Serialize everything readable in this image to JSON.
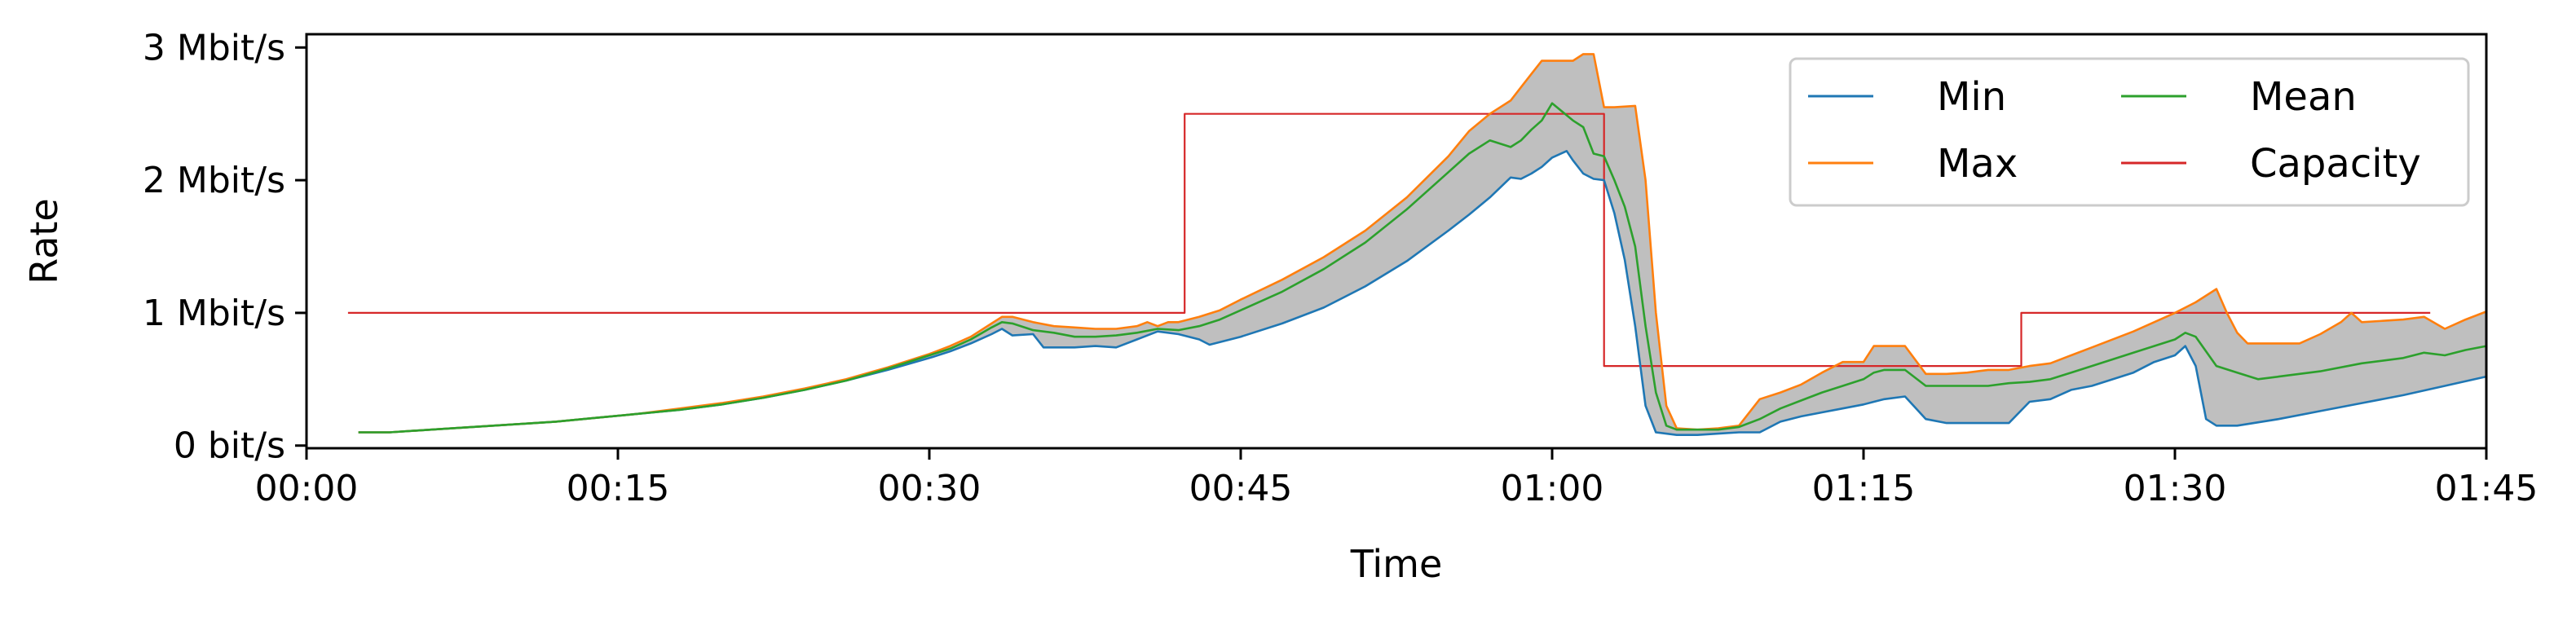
{
  "chart_data": {
    "type": "line",
    "title": "",
    "xlabel": "Time",
    "ylabel": "Rate",
    "x_unit": "minutes",
    "xlim": [
      0,
      105
    ],
    "ylim": [
      -0.02,
      3.1
    ],
    "x_ticks": [
      {
        "value": 0,
        "label": "00:00"
      },
      {
        "value": 15,
        "label": "00:15"
      },
      {
        "value": 30,
        "label": "00:30"
      },
      {
        "value": 45,
        "label": "00:45"
      },
      {
        "value": 60,
        "label": "01:00"
      },
      {
        "value": 75,
        "label": "01:15"
      },
      {
        "value": 90,
        "label": "01:30"
      },
      {
        "value": 105,
        "label": "01:45"
      }
    ],
    "y_ticks": [
      {
        "value": 0,
        "label": "0 bit/s"
      },
      {
        "value": 1,
        "label": "1 Mbit/s"
      },
      {
        "value": 2,
        "label": "2 Mbit/s"
      },
      {
        "value": 3,
        "label": "3 Mbit/s"
      }
    ],
    "y_unit": "Mbit/s",
    "grid": false,
    "legend": {
      "position": "top-right",
      "columns": 2
    },
    "band": {
      "lower": "Min",
      "upper": "Max",
      "color": "#bfbfbf"
    },
    "series": [
      {
        "name": "Min",
        "color": "#1f77b4",
        "points": [
          [
            2.5,
            0.1
          ],
          [
            4,
            0.1
          ],
          [
            6,
            0.12
          ],
          [
            8,
            0.14
          ],
          [
            10,
            0.16
          ],
          [
            12,
            0.18
          ],
          [
            14,
            0.21
          ],
          [
            16,
            0.24
          ],
          [
            18,
            0.27
          ],
          [
            20,
            0.31
          ],
          [
            22,
            0.36
          ],
          [
            24,
            0.42
          ],
          [
            26,
            0.49
          ],
          [
            28,
            0.57
          ],
          [
            30,
            0.66
          ],
          [
            31,
            0.71
          ],
          [
            32,
            0.77
          ],
          [
            33,
            0.84
          ],
          [
            33.5,
            0.88
          ],
          [
            34,
            0.83
          ],
          [
            35,
            0.84
          ],
          [
            35.5,
            0.74
          ],
          [
            37,
            0.74
          ],
          [
            38,
            0.75
          ],
          [
            39,
            0.74
          ],
          [
            40,
            0.8
          ],
          [
            41,
            0.86
          ],
          [
            42,
            0.84
          ],
          [
            43,
            0.8
          ],
          [
            43.5,
            0.76
          ],
          [
            45,
            0.82
          ],
          [
            47,
            0.92
          ],
          [
            49,
            1.04
          ],
          [
            51,
            1.2
          ],
          [
            53,
            1.39
          ],
          [
            55,
            1.62
          ],
          [
            56,
            1.74
          ],
          [
            57,
            1.87
          ],
          [
            58,
            2.02
          ],
          [
            58.5,
            2.01
          ],
          [
            59,
            2.05
          ],
          [
            59.5,
            2.1
          ],
          [
            60,
            2.17
          ],
          [
            60.7,
            2.22
          ],
          [
            61,
            2.15
          ],
          [
            61.5,
            2.05
          ],
          [
            62,
            2.01
          ],
          [
            62.5,
            2.0
          ],
          [
            63,
            1.75
          ],
          [
            63.5,
            1.4
          ],
          [
            64,
            0.9
          ],
          [
            64.5,
            0.3
          ],
          [
            65,
            0.1
          ],
          [
            66,
            0.08
          ],
          [
            67,
            0.08
          ],
          [
            68,
            0.09
          ],
          [
            69,
            0.1
          ],
          [
            70,
            0.1
          ],
          [
            71,
            0.18
          ],
          [
            72,
            0.22
          ],
          [
            73,
            0.25
          ],
          [
            74,
            0.28
          ],
          [
            75,
            0.31
          ],
          [
            75.5,
            0.33
          ],
          [
            76,
            0.35
          ],
          [
            77,
            0.37
          ],
          [
            78,
            0.2
          ],
          [
            79,
            0.17
          ],
          [
            80,
            0.17
          ],
          [
            81,
            0.17
          ],
          [
            82,
            0.17
          ],
          [
            83,
            0.33
          ],
          [
            84,
            0.35
          ],
          [
            85,
            0.42
          ],
          [
            86,
            0.45
          ],
          [
            88,
            0.55
          ],
          [
            89,
            0.63
          ],
          [
            90,
            0.68
          ],
          [
            90.5,
            0.75
          ],
          [
            91,
            0.6
          ],
          [
            91.5,
            0.2
          ],
          [
            92,
            0.15
          ],
          [
            93,
            0.15
          ],
          [
            95,
            0.2
          ],
          [
            97,
            0.26
          ],
          [
            99,
            0.32
          ],
          [
            101,
            0.38
          ],
          [
            103,
            0.45
          ],
          [
            105,
            0.52
          ]
        ]
      },
      {
        "name": "Max",
        "color": "#ff7f0e",
        "points": [
          [
            2.5,
            0.1
          ],
          [
            4,
            0.1
          ],
          [
            6,
            0.12
          ],
          [
            8,
            0.14
          ],
          [
            10,
            0.16
          ],
          [
            12,
            0.18
          ],
          [
            14,
            0.21
          ],
          [
            16,
            0.24
          ],
          [
            18,
            0.28
          ],
          [
            20,
            0.32
          ],
          [
            22,
            0.37
          ],
          [
            24,
            0.43
          ],
          [
            26,
            0.5
          ],
          [
            28,
            0.59
          ],
          [
            30,
            0.69
          ],
          [
            31,
            0.75
          ],
          [
            32,
            0.82
          ],
          [
            33,
            0.92
          ],
          [
            33.5,
            0.97
          ],
          [
            34,
            0.97
          ],
          [
            35,
            0.93
          ],
          [
            36,
            0.9
          ],
          [
            37,
            0.89
          ],
          [
            38,
            0.88
          ],
          [
            39,
            0.88
          ],
          [
            40,
            0.9
          ],
          [
            40.5,
            0.93
          ],
          [
            41,
            0.9
          ],
          [
            41.5,
            0.93
          ],
          [
            42,
            0.93
          ],
          [
            43,
            0.97
          ],
          [
            44,
            1.02
          ],
          [
            45,
            1.1
          ],
          [
            47,
            1.25
          ],
          [
            49,
            1.42
          ],
          [
            51,
            1.62
          ],
          [
            53,
            1.87
          ],
          [
            55,
            2.18
          ],
          [
            56,
            2.37
          ],
          [
            57,
            2.5
          ],
          [
            58,
            2.6
          ],
          [
            58.5,
            2.7
          ],
          [
            59,
            2.8
          ],
          [
            59.5,
            2.9
          ],
          [
            60,
            2.9
          ],
          [
            61,
            2.9
          ],
          [
            61.5,
            2.95
          ],
          [
            62,
            2.95
          ],
          [
            62.5,
            2.55
          ],
          [
            63,
            2.55
          ],
          [
            64,
            2.56
          ],
          [
            64.5,
            2.0
          ],
          [
            65,
            1.0
          ],
          [
            65.5,
            0.3
          ],
          [
            66,
            0.13
          ],
          [
            67,
            0.12
          ],
          [
            68,
            0.13
          ],
          [
            69,
            0.15
          ],
          [
            70,
            0.35
          ],
          [
            71,
            0.4
          ],
          [
            72,
            0.46
          ],
          [
            73,
            0.55
          ],
          [
            74,
            0.63
          ],
          [
            75,
            0.63
          ],
          [
            75.5,
            0.75
          ],
          [
            76,
            0.75
          ],
          [
            77,
            0.75
          ],
          [
            78,
            0.54
          ],
          [
            79,
            0.54
          ],
          [
            80,
            0.55
          ],
          [
            81,
            0.57
          ],
          [
            82,
            0.57
          ],
          [
            83,
            0.6
          ],
          [
            84,
            0.62
          ],
          [
            85,
            0.68
          ],
          [
            86,
            0.74
          ],
          [
            88,
            0.86
          ],
          [
            90,
            1.0
          ],
          [
            91,
            1.08
          ],
          [
            92,
            1.18
          ],
          [
            92.5,
            1.0
          ],
          [
            93,
            0.85
          ],
          [
            93.5,
            0.77
          ],
          [
            95,
            0.77
          ],
          [
            96,
            0.77
          ],
          [
            97,
            0.84
          ],
          [
            98,
            0.93
          ],
          [
            98.5,
            1.0
          ],
          [
            99,
            0.93
          ],
          [
            100,
            0.94
          ],
          [
            101,
            0.95
          ],
          [
            102,
            0.97
          ],
          [
            103,
            0.88
          ],
          [
            104,
            0.95
          ],
          [
            105,
            1.01
          ]
        ]
      },
      {
        "name": "Mean",
        "color": "#2ca02c",
        "points": [
          [
            2.5,
            0.1
          ],
          [
            4,
            0.1
          ],
          [
            6,
            0.12
          ],
          [
            8,
            0.14
          ],
          [
            10,
            0.16
          ],
          [
            12,
            0.18
          ],
          [
            14,
            0.21
          ],
          [
            16,
            0.24
          ],
          [
            18,
            0.27
          ],
          [
            20,
            0.31
          ],
          [
            22,
            0.36
          ],
          [
            24,
            0.42
          ],
          [
            26,
            0.49
          ],
          [
            28,
            0.58
          ],
          [
            30,
            0.68
          ],
          [
            31,
            0.73
          ],
          [
            32,
            0.8
          ],
          [
            33,
            0.89
          ],
          [
            33.5,
            0.93
          ],
          [
            34,
            0.92
          ],
          [
            35,
            0.87
          ],
          [
            36,
            0.85
          ],
          [
            37,
            0.82
          ],
          [
            38,
            0.82
          ],
          [
            39,
            0.83
          ],
          [
            40,
            0.85
          ],
          [
            41,
            0.88
          ],
          [
            42,
            0.87
          ],
          [
            43,
            0.9
          ],
          [
            44,
            0.95
          ],
          [
            45,
            1.02
          ],
          [
            47,
            1.16
          ],
          [
            49,
            1.33
          ],
          [
            51,
            1.53
          ],
          [
            53,
            1.78
          ],
          [
            55,
            2.06
          ],
          [
            56,
            2.2
          ],
          [
            57,
            2.3
          ],
          [
            58,
            2.25
          ],
          [
            58.5,
            2.3
          ],
          [
            59,
            2.38
          ],
          [
            59.5,
            2.45
          ],
          [
            60,
            2.58
          ],
          [
            61,
            2.45
          ],
          [
            61.5,
            2.4
          ],
          [
            62,
            2.2
          ],
          [
            62.5,
            2.18
          ],
          [
            63,
            2.0
          ],
          [
            63.5,
            1.8
          ],
          [
            64,
            1.5
          ],
          [
            64.5,
            0.9
          ],
          [
            65,
            0.4
          ],
          [
            65.5,
            0.15
          ],
          [
            66,
            0.12
          ],
          [
            67,
            0.12
          ],
          [
            68,
            0.12
          ],
          [
            69,
            0.14
          ],
          [
            70,
            0.2
          ],
          [
            71,
            0.28
          ],
          [
            72,
            0.34
          ],
          [
            73,
            0.4
          ],
          [
            74,
            0.45
          ],
          [
            75,
            0.5
          ],
          [
            75.5,
            0.55
          ],
          [
            76,
            0.57
          ],
          [
            77,
            0.57
          ],
          [
            78,
            0.45
          ],
          [
            79,
            0.45
          ],
          [
            80,
            0.45
          ],
          [
            81,
            0.45
          ],
          [
            82,
            0.47
          ],
          [
            83,
            0.48
          ],
          [
            84,
            0.5
          ],
          [
            85,
            0.55
          ],
          [
            86,
            0.6
          ],
          [
            88,
            0.7
          ],
          [
            90,
            0.8
          ],
          [
            90.5,
            0.85
          ],
          [
            91,
            0.82
          ],
          [
            92,
            0.6
          ],
          [
            93,
            0.55
          ],
          [
            94,
            0.5
          ],
          [
            95,
            0.52
          ],
          [
            97,
            0.56
          ],
          [
            99,
            0.62
          ],
          [
            101,
            0.66
          ],
          [
            102,
            0.7
          ],
          [
            103,
            0.68
          ],
          [
            104,
            0.72
          ],
          [
            105,
            0.75
          ]
        ]
      },
      {
        "name": "Capacity",
        "color": "#d62728",
        "step": true,
        "points": [
          [
            2,
            1.0
          ],
          [
            42.3,
            1.0
          ],
          [
            42.3,
            2.5
          ],
          [
            62.5,
            2.5
          ],
          [
            62.5,
            0.6
          ],
          [
            82.6,
            0.6
          ],
          [
            82.6,
            1.0
          ],
          [
            102.3,
            1.0
          ]
        ]
      }
    ]
  }
}
